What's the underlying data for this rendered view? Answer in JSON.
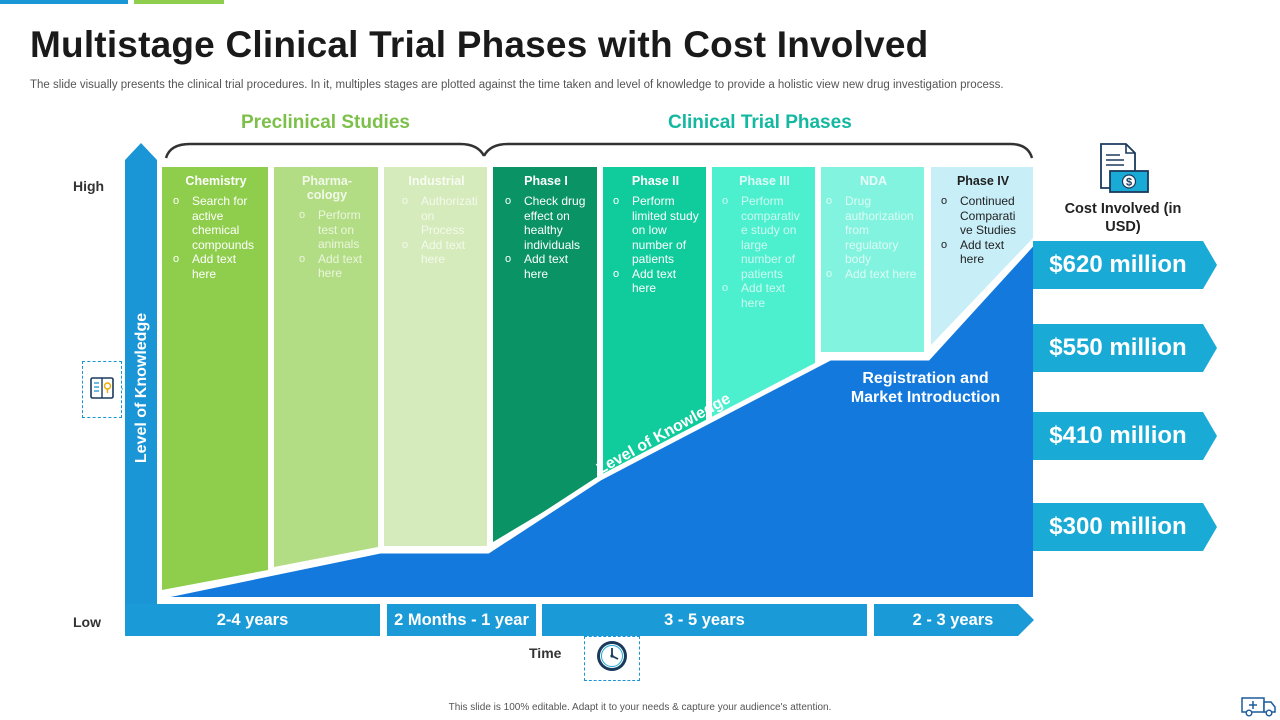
{
  "title": "Multistage Clinical Trial Phases with Cost Involved",
  "subtitle": "The slide visually presents the clinical trial procedures. In it,  multiples stages are plotted against the time taken and level of knowledge to provide a holistic view new drug investigation process.",
  "groups": {
    "preclinical": "Preclinical Studies",
    "clinical": "Clinical Trial Phases"
  },
  "axis": {
    "high": "High",
    "low": "Low",
    "y_label": "Level of Knowledge",
    "x_label": "Time",
    "diagonal_label": "Level of Knowledge"
  },
  "phases": [
    {
      "title": "Chemistry",
      "bullets": [
        "Search for active chemical compounds",
        "Add text here"
      ],
      "color": "#8fce4c"
    },
    {
      "title": "Pharma-cology",
      "bullets": [
        "Perform test on animals",
        "Add text here"
      ],
      "color": "#b3dd85"
    },
    {
      "title": "Industrial",
      "bullets": [
        "Authorizati on Process",
        "Add text here"
      ],
      "color": "#d5ebbb"
    },
    {
      "title": "Phase I",
      "bullets": [
        "Check drug effect on healthy individuals",
        "Add text here"
      ],
      "color": "#0a9466"
    },
    {
      "title": "Phase II",
      "bullets": [
        "Perform limited study on low number of patients",
        "Add text here"
      ],
      "color": "#10cc9c"
    },
    {
      "title": "Phase III",
      "bullets": [
        "Perform comparativ e study on large number of patients",
        "Add text here"
      ],
      "color": "#4cf0cf"
    },
    {
      "title": "NDA",
      "bullets": [
        "Drug authorization from regulatory body",
        "Add text here"
      ],
      "color": "#82f3de"
    },
    {
      "title": "Phase IV",
      "bullets": [
        "Continued Comparati ve Studies",
        "Add text here"
      ],
      "color": "#c8eef8"
    }
  ],
  "registration_label": "Registration and Market Introduction",
  "cost": {
    "title": "Cost Involved (in USD)",
    "values": [
      "$620 million",
      "$550 million",
      "$410 million",
      "$300 million"
    ],
    "color": "#1aaad6"
  },
  "time_segments": [
    "2-4 years",
    "2 Months  - 1 year",
    "3 - 5 years",
    "2 - 3 years"
  ],
  "footer": "This slide is 100% editable.  Adapt it to your needs & capture your audience's attention.",
  "colors": {
    "knowledge_area": "#1479dd",
    "axis_blue": "#1a95d6",
    "time_blue": "#1a9bd8",
    "preclinical_green": "#7cc04a",
    "clinical_teal": "#14b8a0"
  },
  "icons": {
    "book": "book-icon",
    "clock": "clock-icon",
    "invoice": "invoice-dollar-icon",
    "ambulance": "ambulance-icon"
  }
}
